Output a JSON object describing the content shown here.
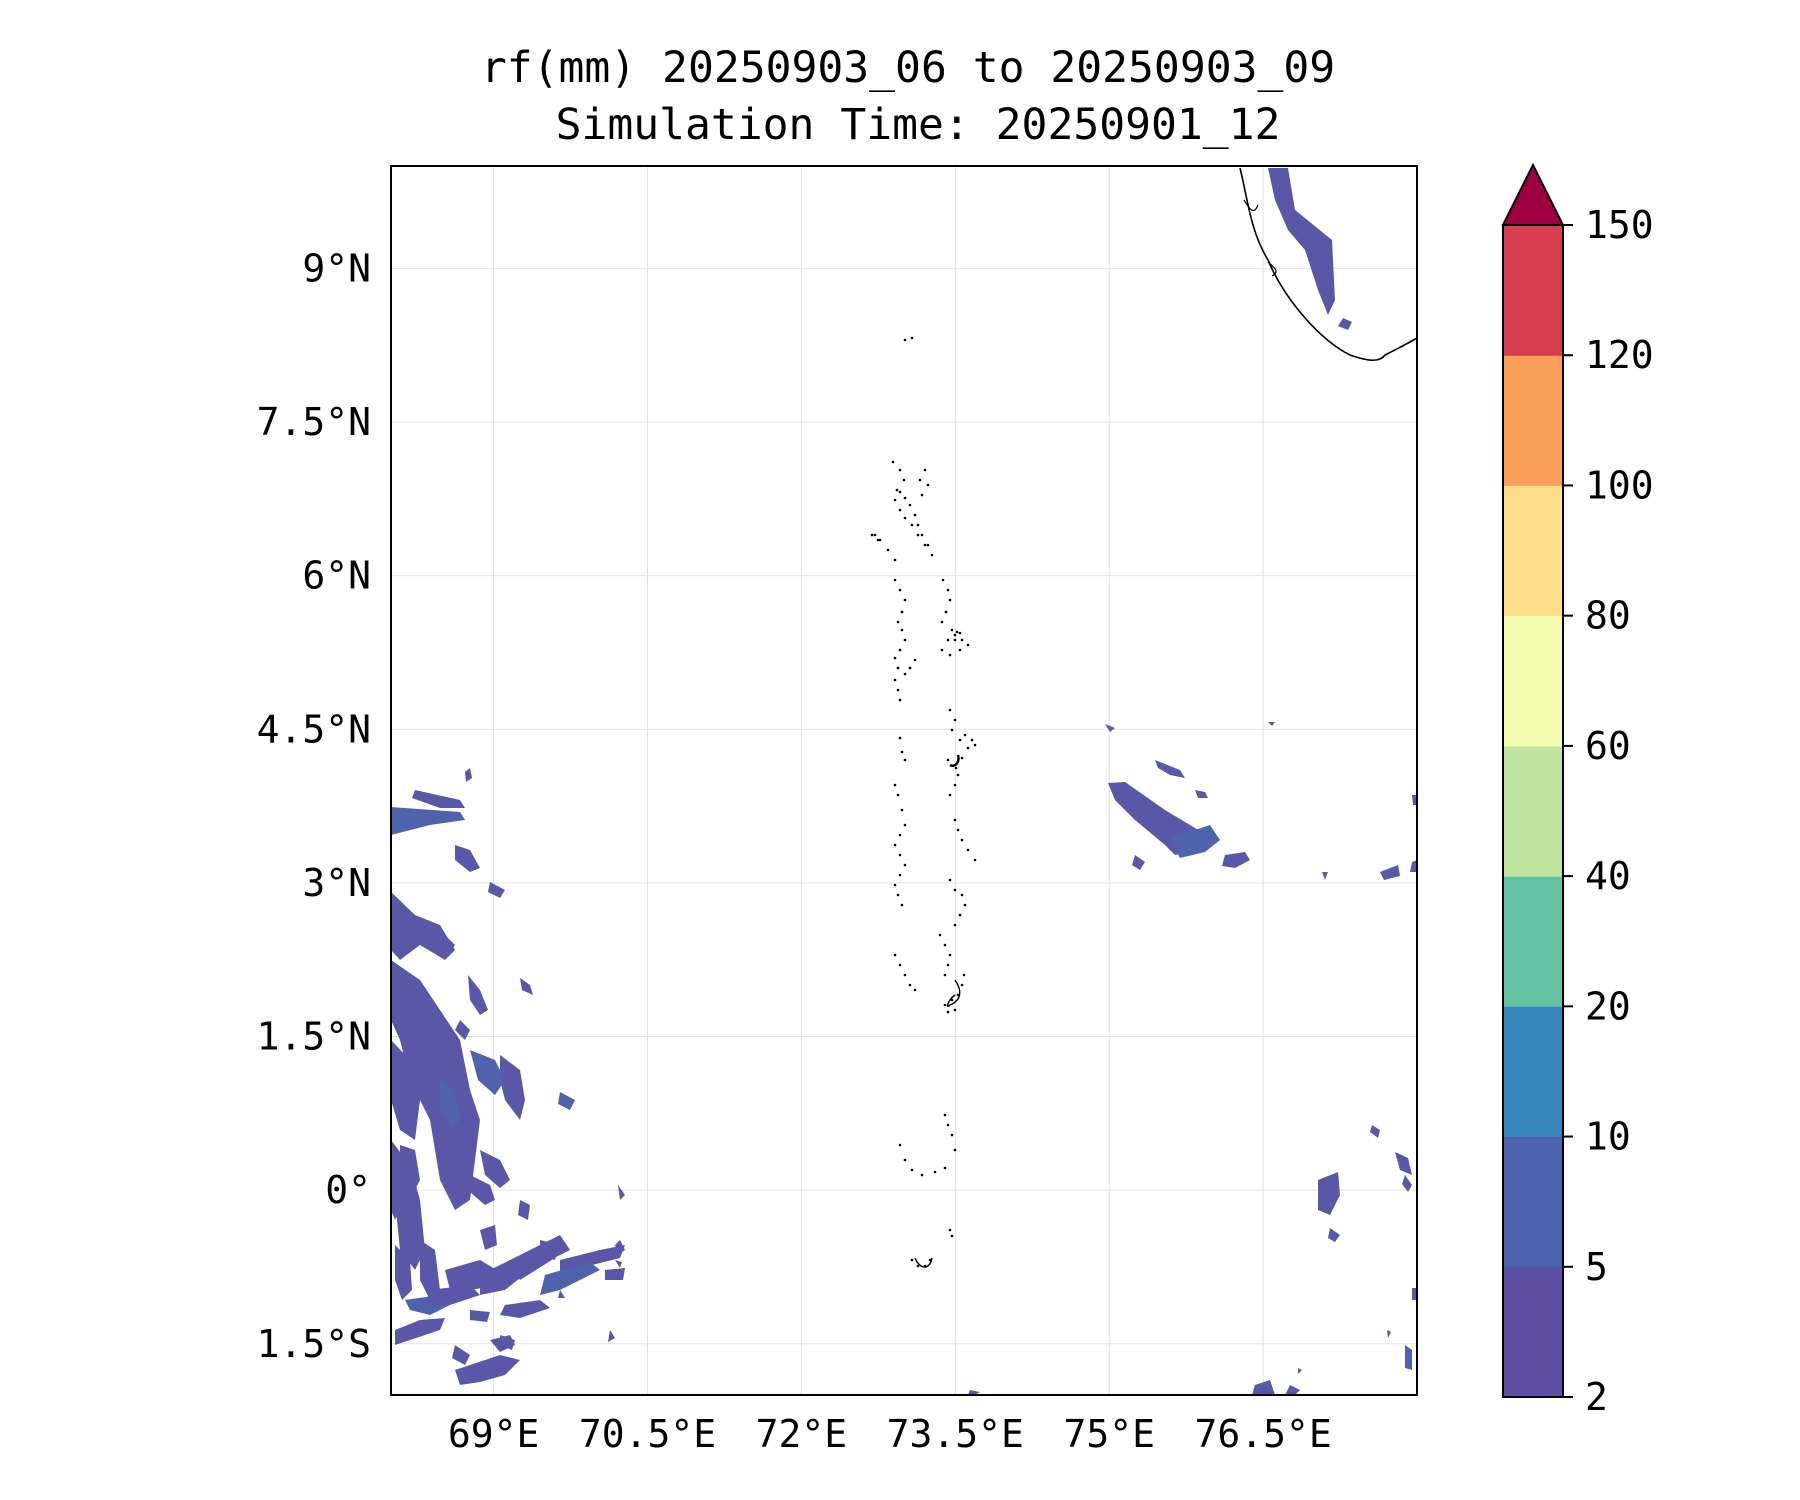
{
  "title": {
    "line1": "rf(mm) 20250903_06 to 20250903_09",
    "line2": "Simulation Time: 20250901_12"
  },
  "map": {
    "lon_range": [
      68.0,
      78.0
    ],
    "lat_range": [
      -2.0,
      10.0
    ],
    "gridlines": true,
    "lon_ticks": [
      69.0,
      70.5,
      72.0,
      73.5,
      75.0,
      76.5
    ],
    "lon_tick_labels": [
      "69°E",
      "70.5°E",
      "72°E",
      "73.5°E",
      "75°E",
      "76.5°E"
    ],
    "lat_ticks": [
      9.0,
      7.5,
      6.0,
      4.5,
      3.0,
      1.5,
      0.0,
      -1.5
    ],
    "lat_tick_labels": [
      "9°N",
      "7.5°N",
      "6°N",
      "4.5°N",
      "3°N",
      "1.5°N",
      "0°",
      "1.5°S"
    ],
    "coastline_color": "#000000",
    "grid_color": "#e0e0e0"
  },
  "colorbar": {
    "levels": [
      2,
      5,
      10,
      20,
      40,
      60,
      80,
      100,
      120,
      150
    ],
    "labels": [
      "2",
      "5",
      "10",
      "20",
      "40",
      "60",
      "80",
      "100",
      "120",
      "150"
    ],
    "colors": [
      "#5e4fa2",
      "#4d62ae",
      "#3784bb",
      "#66c2a5",
      "#bfe5a0",
      "#f5fbae",
      "#fee08b",
      "#f99f59",
      "#d53e4f"
    ],
    "extend_color": "#9e0142",
    "extend": "max"
  },
  "rain_color": "#5a56a8",
  "rain_color_dark": "#4f63ad"
}
